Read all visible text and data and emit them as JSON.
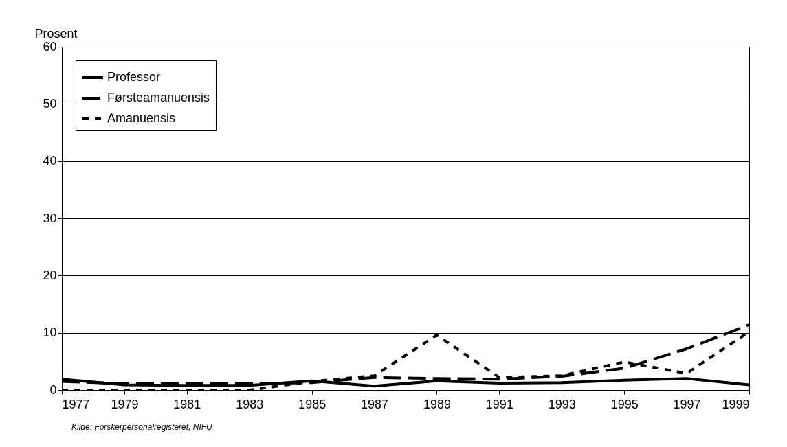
{
  "chart_data": {
    "type": "line",
    "ylabel": "Prosent",
    "x": [
      1977,
      1979,
      1981,
      1983,
      1985,
      1987,
      1989,
      1991,
      1993,
      1995,
      1997,
      1999
    ],
    "series": [
      {
        "name": "Professor",
        "color": "#000000",
        "line_style": "solid",
        "values": [
          1.9,
          0.9,
          0.8,
          0.8,
          1.6,
          0.7,
          1.6,
          1.2,
          1.3,
          1.7,
          2.0,
          0.9
        ]
      },
      {
        "name": "Førsteamanuensis",
        "color": "#000000",
        "line_style": "dashed",
        "values": [
          1.5,
          1.1,
          1.1,
          1.1,
          1.3,
          2.2,
          2.0,
          1.9,
          2.4,
          3.8,
          7.2,
          11.4
        ]
      },
      {
        "name": "Amanuensis",
        "color": "#000000",
        "line_style": "dotted",
        "values": [
          0,
          0,
          0,
          0,
          1.5,
          2.5,
          9.6,
          2.2,
          2.5,
          4.9,
          2.9,
          10.2
        ]
      }
    ],
    "xlim": [
      1977,
      1999
    ],
    "xticks": [
      1977,
      1979,
      1981,
      1983,
      1985,
      1987,
      1989,
      1991,
      1993,
      1995,
      1997,
      1999
    ],
    "ylim": [
      0,
      60
    ],
    "yticks": [
      0,
      10,
      20,
      30,
      40,
      50,
      60
    ],
    "grid": "y",
    "legend": "top left",
    "marker": "none",
    "annotations": [
      "Kilde: Forskerpersonalregisteret, NIFU"
    ]
  }
}
